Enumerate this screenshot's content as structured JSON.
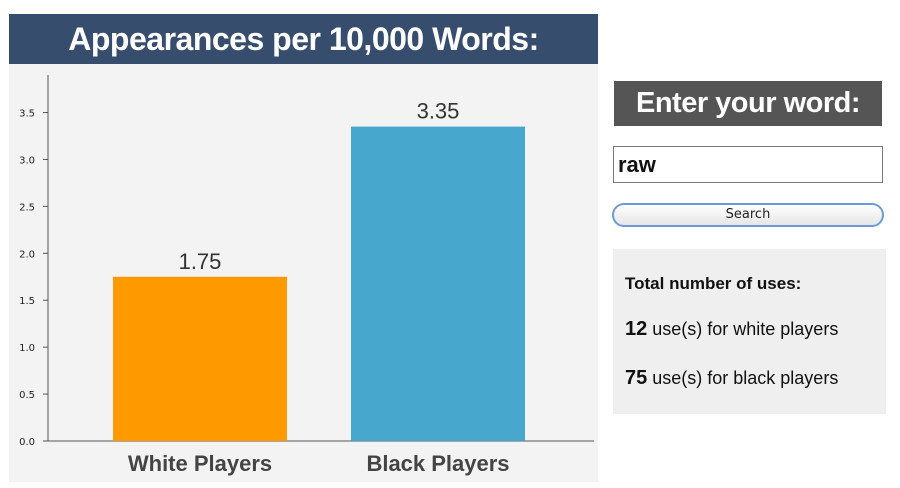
{
  "chart_data": {
    "type": "bar",
    "title": "Appearances per 10,000 Words:",
    "categories": [
      "White Players",
      "Black Players"
    ],
    "values": [
      1.75,
      3.35
    ],
    "value_labels": [
      "1.75",
      "3.35"
    ],
    "colors": [
      "#ff9900",
      "#47a7cc"
    ],
    "ylim": [
      0,
      3.9
    ],
    "yticks": [
      "0.0",
      "0.5",
      "1.0",
      "1.5",
      "2.0",
      "2.5",
      "3.0",
      "3.5"
    ],
    "xlabel": "",
    "ylabel": "",
    "grid": false
  },
  "search": {
    "header": "Enter your word:",
    "input_value": "raw",
    "button_label": "Search"
  },
  "totals": {
    "title": "Total number of uses:",
    "white_count": "12",
    "white_label": " use(s) for white players",
    "black_count": "75",
    "black_label": " use(s) for black players"
  }
}
